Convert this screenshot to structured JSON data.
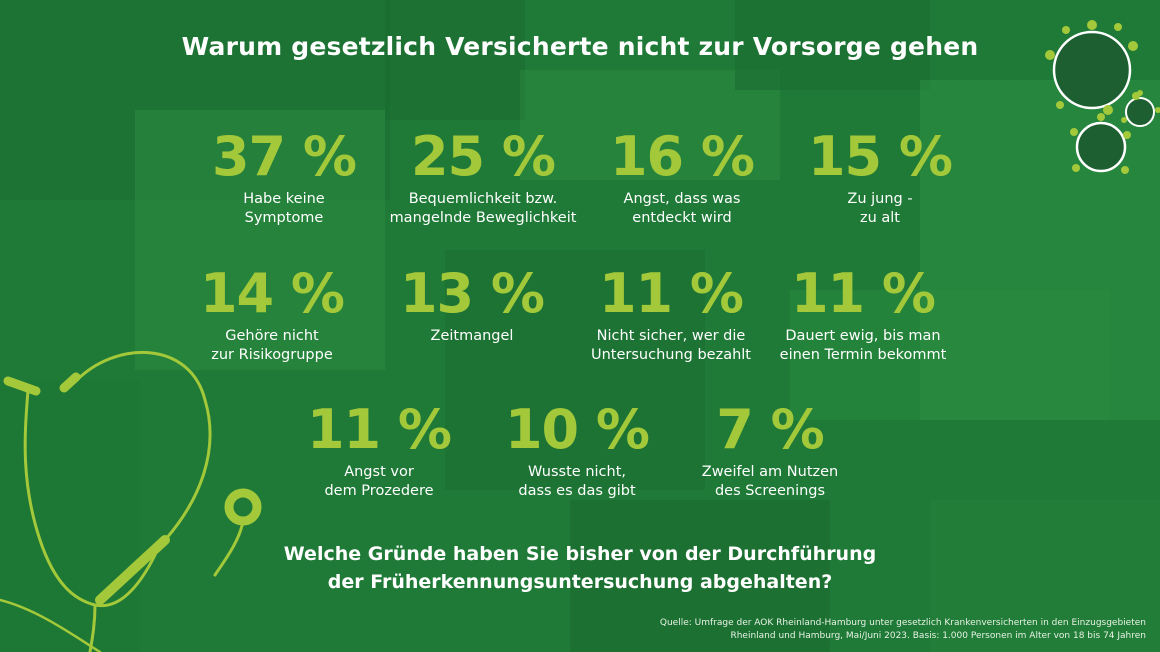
{
  "title": "Warum gesetzlich Versicherte nicht zur Vorsorge gehen",
  "stats": [
    {
      "value": "37 %",
      "label": "Habe keine\nSymptome"
    },
    {
      "value": "25 %",
      "label": "Bequemlichkeit bzw.\nmangelnde Beweglichkeit"
    },
    {
      "value": "16 %",
      "label": "Angst, dass was\nentdeckt wird"
    },
    {
      "value": "15 %",
      "label": "Zu jung -\nzu alt"
    },
    {
      "value": "14 %",
      "label": "Gehöre nicht\nzur Risikogruppe"
    },
    {
      "value": "13 %",
      "label": "Zeitmangel"
    },
    {
      "value": "11 %",
      "label": "Nicht sicher, wer die\nUntersuchung bezahlt"
    },
    {
      "value": "11 %",
      "label": "Dauert ewig, bis man\neinen Termin bekommt"
    },
    {
      "value": "11 %",
      "label": "Angst vor\ndem Prozedere"
    },
    {
      "value": "10 %",
      "label": "Wusste nicht,\ndass es das gibt"
    },
    {
      "value": "7 %",
      "label": "Zweifel am Nutzen\ndes Screenings"
    }
  ],
  "question": "Welche Gründe haben Sie bisher von der Durchführung\nder Früherkennungsuntersuchung abgehalten?",
  "source": "Quelle: Umfrage der AOK Rheinland-Hamburg unter gesetzlich Krankenversicherten in den Einzugsgebieten\nRheinland und Hamburg, Mai/Juni 2023. Basis: 1.000 Personen im Alter von 18 bis 74 Jahren",
  "colors": {
    "background": "#1f7a37",
    "accent": "#a3c93a",
    "text": "#ffffff"
  },
  "decorations": {
    "stethoscope": "stethoscope-icon",
    "virus": "virus-icon"
  }
}
